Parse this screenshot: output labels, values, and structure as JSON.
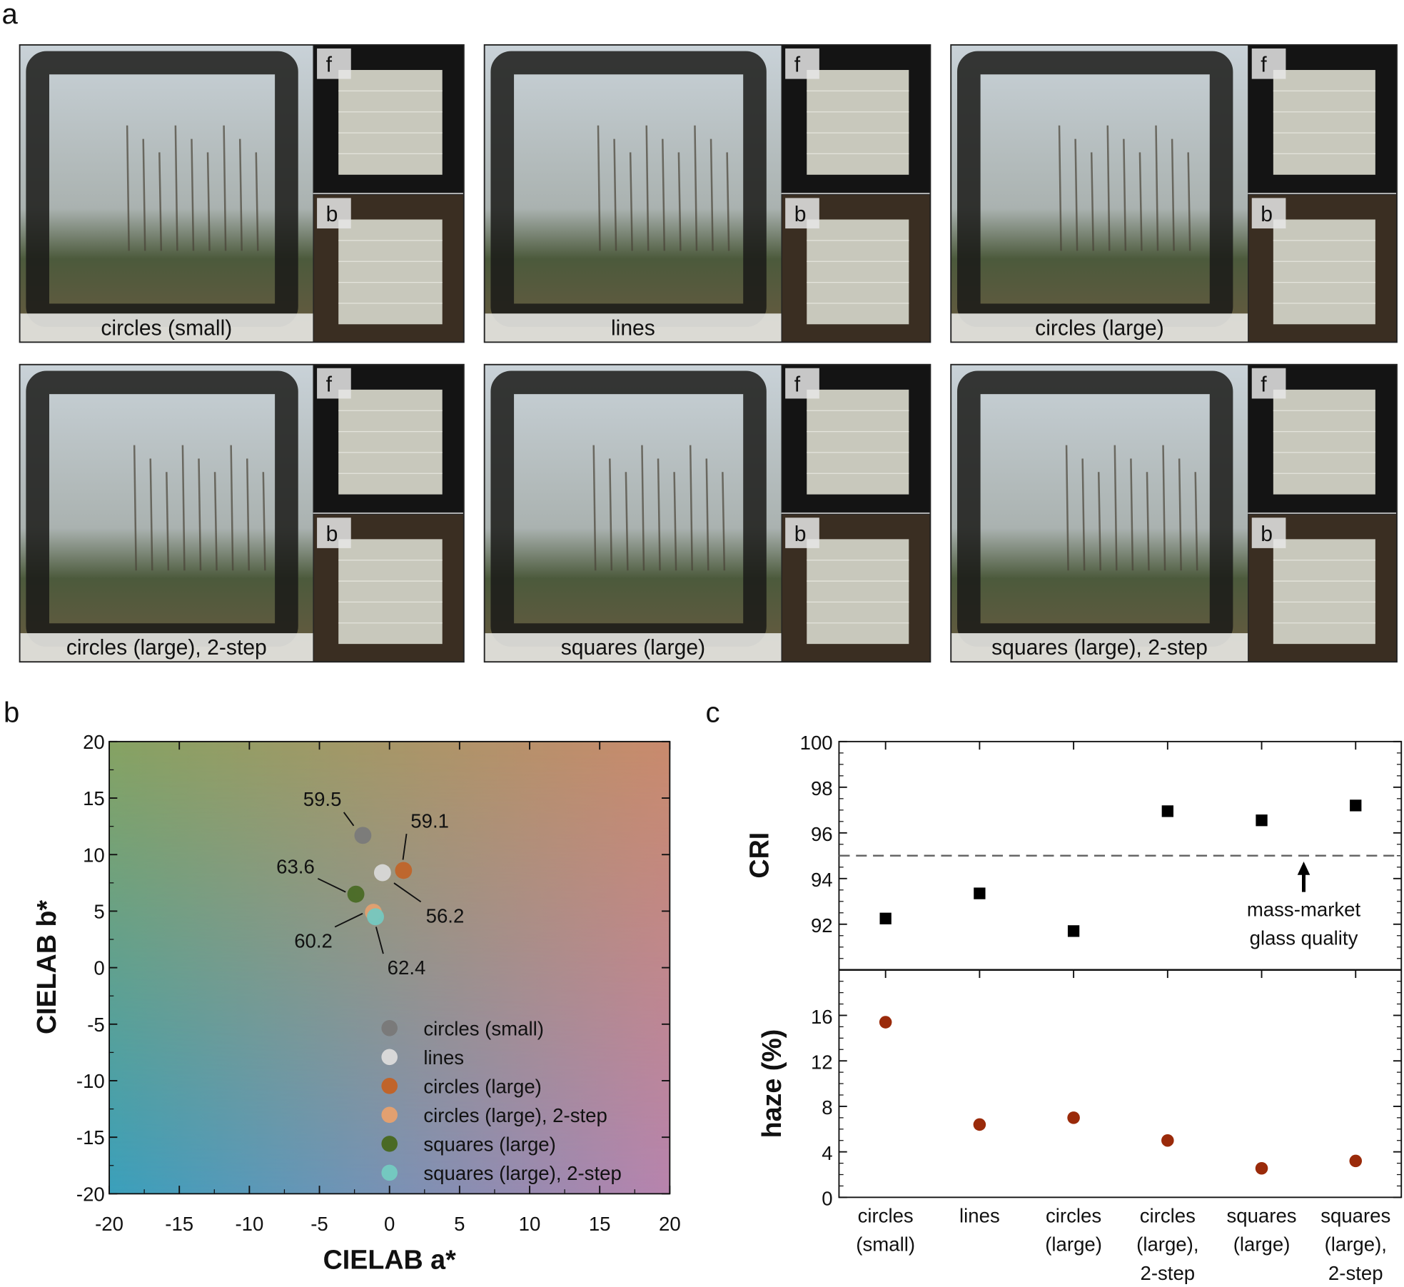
{
  "panel_letters": {
    "a": "a",
    "b": "b",
    "c": "c"
  },
  "photo_panels": [
    {
      "caption": "circles (small)",
      "front_label": "f",
      "back_label": "b"
    },
    {
      "caption": "lines",
      "front_label": "f",
      "back_label": "b"
    },
    {
      "caption": "circles (large)",
      "front_label": "f",
      "back_label": "b"
    },
    {
      "caption": "circles (large), 2-step",
      "front_label": "f",
      "back_label": "b"
    },
    {
      "caption": "squares (large)",
      "front_label": "f",
      "back_label": "b"
    },
    {
      "caption": "squares (large), 2-step",
      "front_label": "f",
      "back_label": "b"
    }
  ],
  "chart_data": [
    {
      "type": "scatter",
      "xlabel": "CIELAB a*",
      "ylabel": "CIELAB b*",
      "xlim": [
        -20,
        20
      ],
      "ylim": [
        -20,
        20
      ],
      "xticks": [
        "-20",
        "-15",
        "-10",
        "-5",
        "0",
        "5",
        "10",
        "15",
        "20"
      ],
      "yticks": [
        "20",
        "15",
        "10",
        "5",
        "0",
        "-5",
        "-10",
        "-15",
        "-20"
      ],
      "background": "CIELAB color gradient",
      "legend_position": "bottom-right",
      "series": [
        {
          "name": "circles (small)",
          "a": -1.9,
          "b": 11.7,
          "label": "59.5",
          "color": "#7a7a7a"
        },
        {
          "name": "lines",
          "a": -0.5,
          "b": 8.4,
          "label": "56.2",
          "color": "#d8d8d8"
        },
        {
          "name": "circles (large)",
          "a": 1.0,
          "b": 8.6,
          "label": "59.1",
          "color": "#c0642a"
        },
        {
          "name": "circles (large), 2-step",
          "a": -1.15,
          "b": 4.9,
          "label": "60.2",
          "color": "#e2a070"
        },
        {
          "name": "squares (large)",
          "a": -2.4,
          "b": 6.5,
          "label": "63.6",
          "color": "#4a6a25"
        },
        {
          "name": "squares (large), 2-step",
          "a": -1.0,
          "b": 4.5,
          "label": "62.4",
          "color": "#74c8c0"
        }
      ]
    },
    {
      "type": "scatter",
      "categories": [
        "circles (small)",
        "lines",
        "circles (large)",
        "circles (large), 2-step",
        "squares (large)",
        "squares (large), 2-step"
      ],
      "category_labels": [
        [
          "circles",
          "(small)"
        ],
        [
          "lines"
        ],
        [
          "circles",
          "(large)"
        ],
        [
          "circles",
          "(large),",
          "2-step"
        ],
        [
          "squares",
          "(large)"
        ],
        [
          "squares",
          "(large),",
          "2-step"
        ]
      ],
      "panels": [
        {
          "ylabel": "CRI",
          "ylim": [
            90,
            100
          ],
          "yticks": [
            "100",
            "98",
            "96",
            "94",
            "92"
          ],
          "marker": "square",
          "color": "#000000",
          "values": [
            92.25,
            93.35,
            91.7,
            96.95,
            96.55,
            97.2
          ],
          "reference_line": {
            "value": 95,
            "style": "dashed",
            "annotation": [
              "mass-market",
              "glass quality"
            ]
          }
        },
        {
          "ylabel": "haze (%)",
          "ylim": [
            0,
            20
          ],
          "yticks": [
            "16",
            "12",
            "8",
            "4",
            "0"
          ],
          "marker": "circle",
          "color": "#9a2a0a",
          "values": [
            15.4,
            6.4,
            7.0,
            5.0,
            2.55,
            3.2
          ]
        }
      ]
    }
  ]
}
